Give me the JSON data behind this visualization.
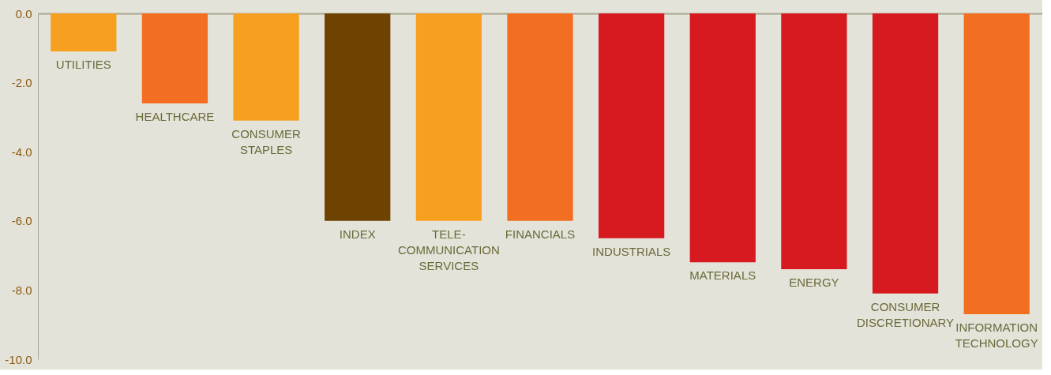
{
  "chart_data": {
    "type": "bar",
    "categories": [
      "UTILITIES",
      "HEALTHCARE",
      "CONSUMER STAPLES",
      "INDEX",
      "TELE-COMMUNICATION SERVICES",
      "FINANCIALS",
      "INDUSTRIALS",
      "MATERIALS",
      "ENERGY",
      "CONSUMER DISCRETIONARY",
      "INFORMATION TECHNOLOGY"
    ],
    "values": [
      -1.1,
      -2.6,
      -3.1,
      -6.0,
      -6.0,
      -6.0,
      -6.5,
      -7.2,
      -7.4,
      -8.1,
      -8.7
    ],
    "colors": [
      "#f7a01f",
      "#f26f22",
      "#f7a01f",
      "#6e4200",
      "#f7a01f",
      "#f26f22",
      "#d71920",
      "#d71920",
      "#d71920",
      "#d71920",
      "#f26f22"
    ],
    "ylim": [
      -10,
      0
    ],
    "yticks": [
      {
        "value": 0,
        "label": "0.0"
      },
      {
        "value": -2,
        "label": "-2.0"
      },
      {
        "value": -4,
        "label": "-4.0"
      },
      {
        "value": -6,
        "label": "-6.0"
      },
      {
        "value": -8,
        "label": "-8.0"
      },
      {
        "value": -10,
        "label": "-10.0"
      }
    ],
    "grid": false,
    "tick_labels": "y"
  }
}
